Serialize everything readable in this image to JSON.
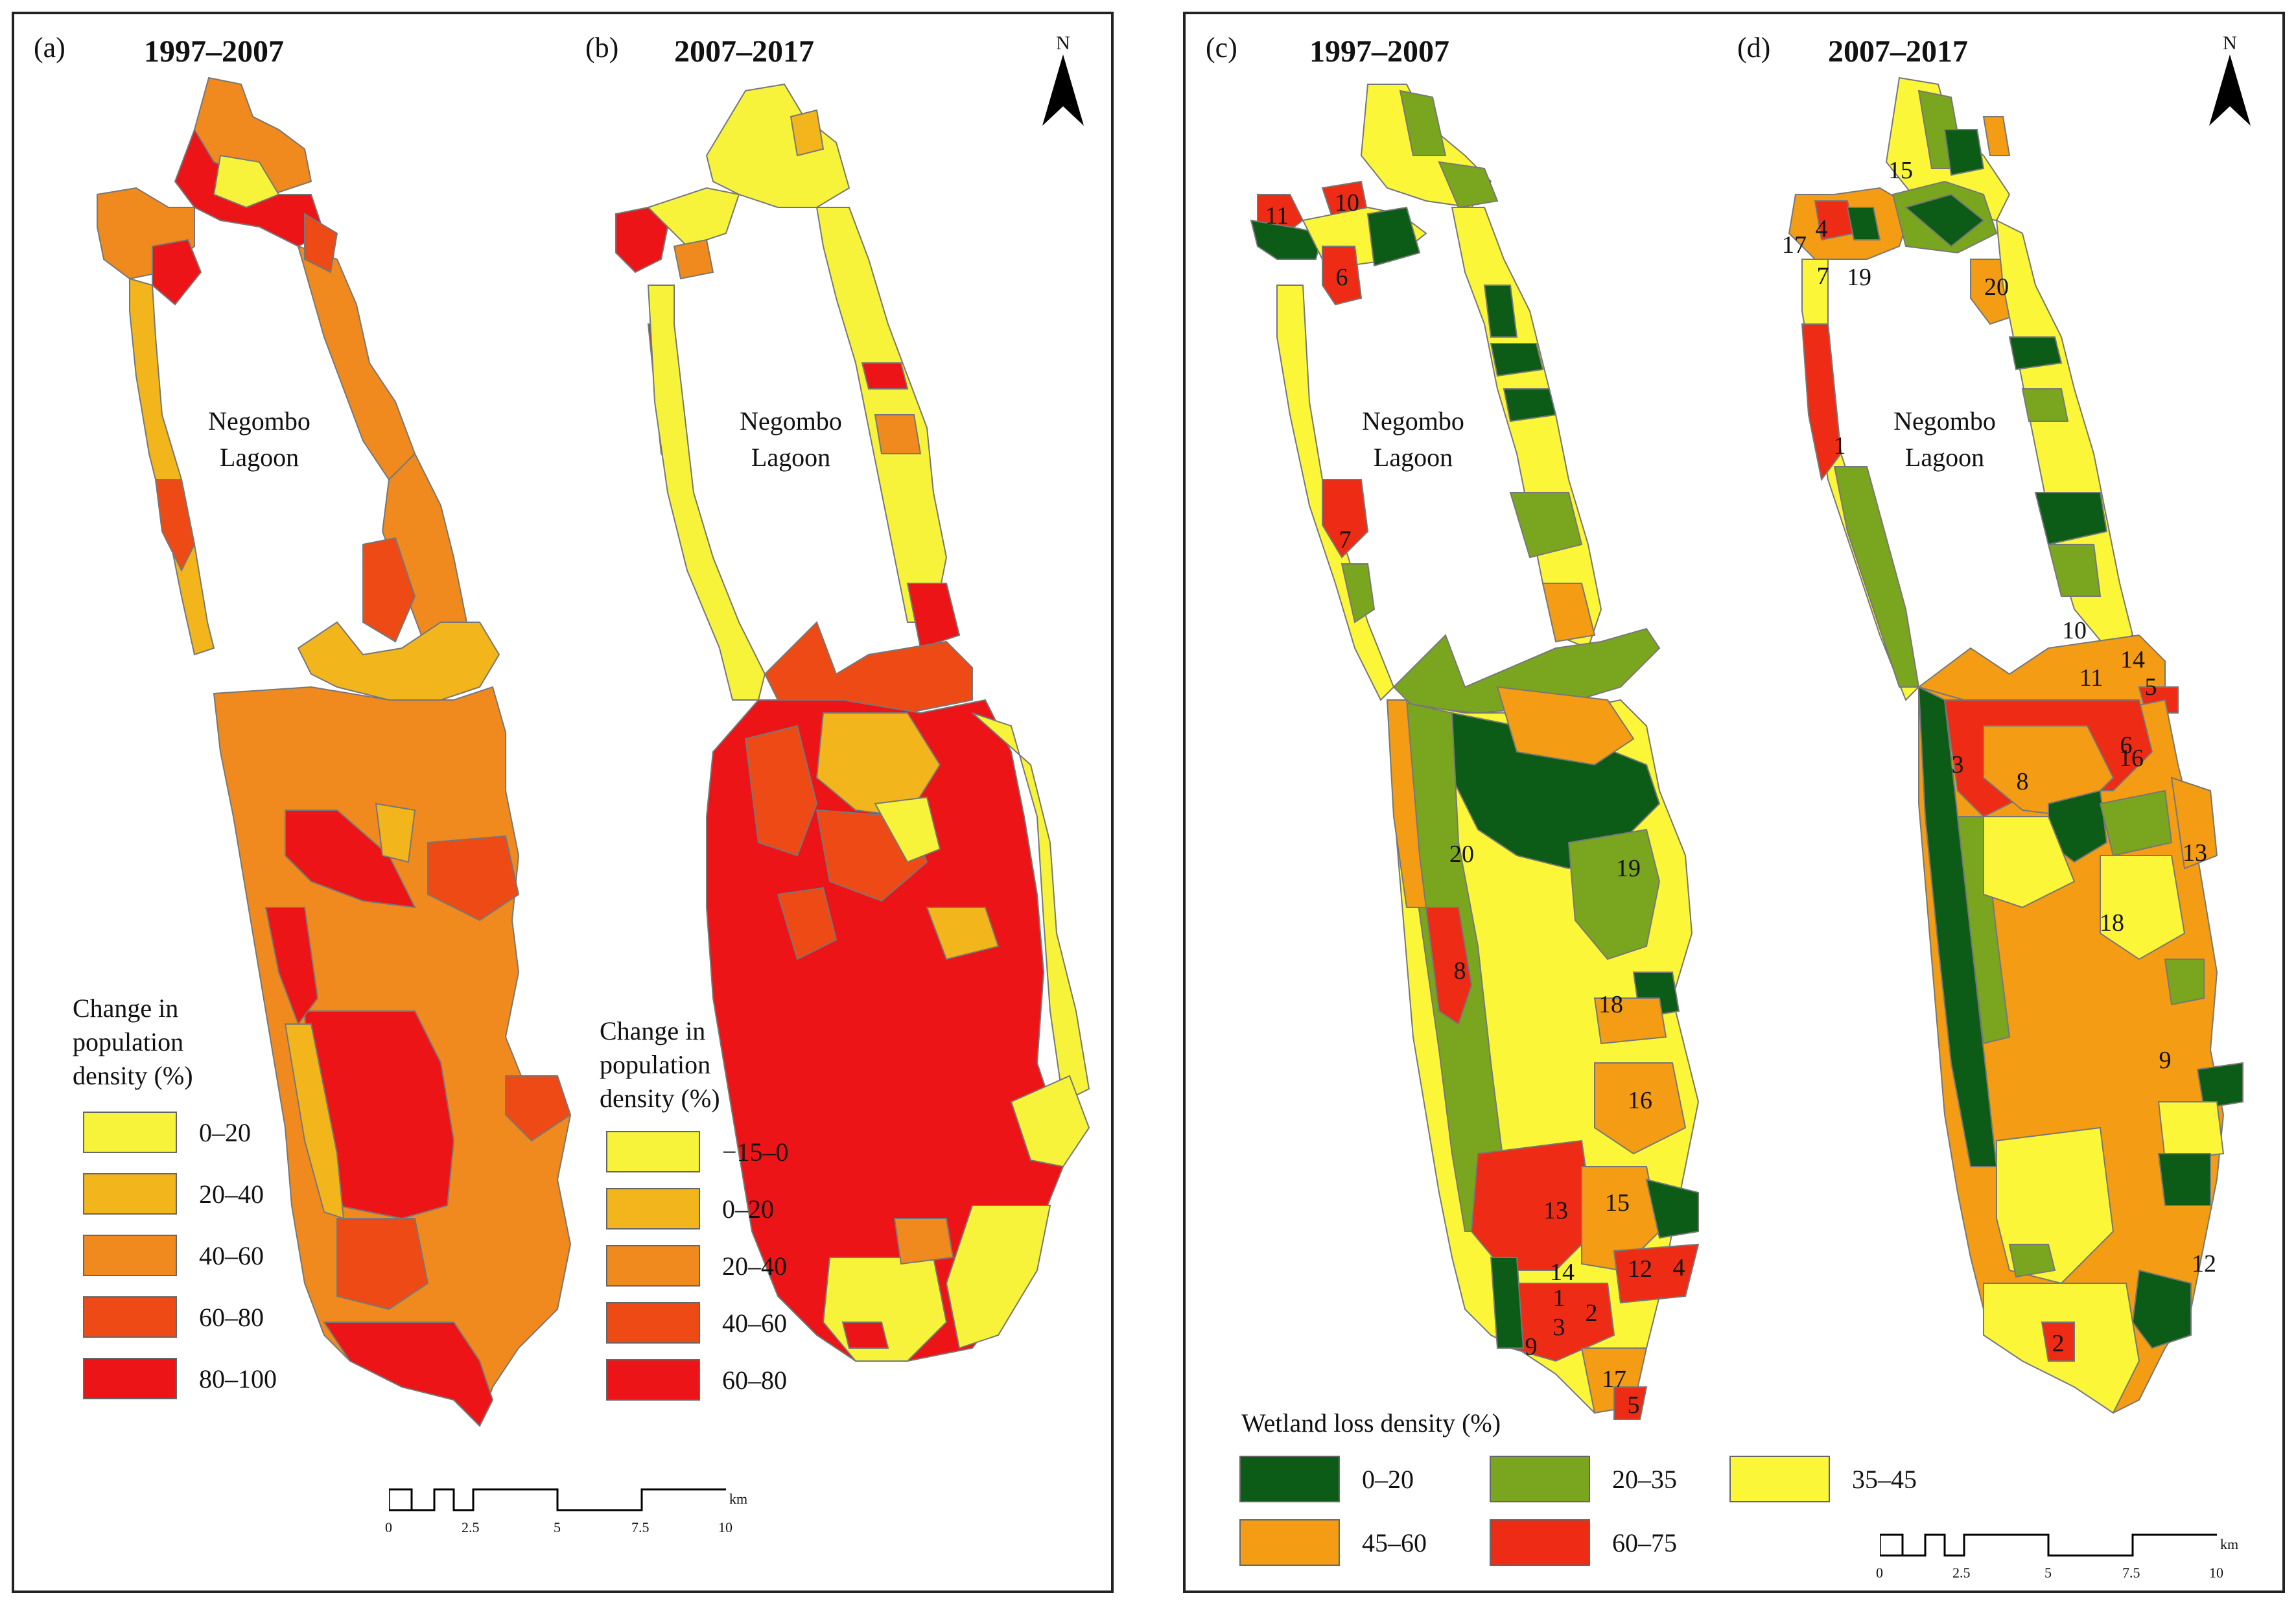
{
  "left_panel": {
    "map_a": {
      "label": "(a)",
      "period": "1997–2007"
    },
    "map_b": {
      "label": "(b)",
      "period": "2007–2017"
    },
    "lagoon_line1": "Negombo",
    "lagoon_line2": "Lagoon",
    "north_letter": "N",
    "legend_a": {
      "title_lines": [
        "Change in",
        "population",
        "density (%)"
      ],
      "items": [
        {
          "label": "0–20",
          "color": "#f7f33a"
        },
        {
          "label": "20–40",
          "color": "#f2b51b"
        },
        {
          "label": "40–60",
          "color": "#f08a1f"
        },
        {
          "label": "60–80",
          "color": "#ee4a16"
        },
        {
          "label": "80–100",
          "color": "#ec1416"
        }
      ]
    },
    "legend_b": {
      "title_lines": [
        "Change in",
        "population",
        "density (%)"
      ],
      "items": [
        {
          "label": "−15–0",
          "color": "#f7f33a"
        },
        {
          "label": "0–20",
          "color": "#f2b51b"
        },
        {
          "label": "20–40",
          "color": "#f08a1f"
        },
        {
          "label": "40–60",
          "color": "#ee4a16"
        },
        {
          "label": "60–80",
          "color": "#ec1416"
        }
      ]
    },
    "scale": {
      "ticks": [
        "0",
        "2.5",
        "5",
        "7.5",
        "10"
      ],
      "unit": "km"
    }
  },
  "right_panel": {
    "map_c": {
      "label": "(c)",
      "period": "1997–2007",
      "region_numbers": [
        "1",
        "2",
        "3",
        "4",
        "5",
        "6",
        "7",
        "8",
        "9",
        "10",
        "11",
        "12",
        "13",
        "14",
        "15",
        "16",
        "17",
        "18",
        "19",
        "20"
      ]
    },
    "map_d": {
      "label": "(d)",
      "period": "2007–2017",
      "region_numbers": [
        "1",
        "2",
        "3",
        "4",
        "5",
        "6",
        "7",
        "8",
        "9",
        "10",
        "11",
        "12",
        "13",
        "14",
        "15",
        "16",
        "17",
        "18",
        "19",
        "20"
      ]
    },
    "lagoon_line1": "Negombo",
    "lagoon_line2": "Lagoon",
    "north_letter": "N",
    "legend": {
      "title": "Wetland loss density (%)",
      "items": [
        {
          "label": "0–20",
          "color": "#0c5c18"
        },
        {
          "label": "20–35",
          "color": "#7aa51f"
        },
        {
          "label": "35–45",
          "color": "#fbf638"
        },
        {
          "label": "45–60",
          "color": "#f39c14"
        },
        {
          "label": "60–75",
          "color": "#ee2b14"
        }
      ]
    },
    "scale": {
      "ticks": [
        "0",
        "2.5",
        "5",
        "7.5",
        "10"
      ],
      "unit": "km"
    }
  }
}
